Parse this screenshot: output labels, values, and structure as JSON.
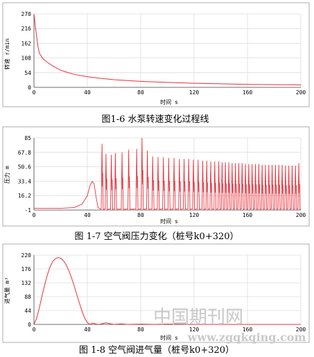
{
  "colors": {
    "series": "#e8303a",
    "grid": "#dcdcdc",
    "frame": "#9a9a9a",
    "watermark": "#c9c9c9"
  },
  "watermark": {
    "cn": "中国期刊网",
    "url": "www.zgqkqing.com"
  },
  "chart_data": [
    {
      "type": "line",
      "title": "",
      "caption": "图1-6 水泵转速变化过程线",
      "xlabel": "时间 s",
      "ylabel": "转速 r/min",
      "xlim": [
        0,
        200
      ],
      "ylim": [
        0,
        270
      ],
      "xticks": [
        "0",
        "40",
        "80",
        "120",
        "160",
        "200"
      ],
      "yticks": [
        "0",
        "54",
        "108",
        "162",
        "216",
        "270"
      ],
      "grid": true,
      "series": [
        {
          "x": [
            0,
            0.5,
            1,
            2,
            3,
            4,
            6,
            8,
            10,
            15,
            20,
            25,
            30,
            40,
            50,
            60,
            80,
            100,
            120,
            140,
            160,
            180,
            200
          ],
          "values": [
            270,
            248,
            225,
            185,
            150,
            126,
            110,
            100,
            92,
            76,
            63,
            55,
            48,
            39,
            33,
            28,
            22,
            18,
            15,
            13,
            11,
            10,
            9
          ]
        }
      ]
    },
    {
      "type": "line",
      "title": "",
      "caption": "图 1-7 空气阀压力变化（桩号k0+320）",
      "xlabel": "时间 s",
      "ylabel": "压力 m",
      "xlim": [
        0,
        200
      ],
      "ylim": [
        -1,
        85
      ],
      "xticks": [
        "0",
        "40",
        "80",
        "120",
        "160",
        "200"
      ],
      "yticks": [
        "-1",
        "16.2",
        "33.4",
        "50.6",
        "67.8",
        "85"
      ],
      "grid": true,
      "series": [
        {
          "baseline": [
            [
              0,
              1
            ],
            [
              20,
              1
            ],
            [
              30,
              2
            ],
            [
              36,
              6
            ],
            [
              40,
              16
            ],
            [
              42,
              28
            ],
            [
              43.5,
              33
            ],
            [
              45,
              31
            ],
            [
              46.5,
              15
            ],
            [
              48,
              2
            ],
            [
              50,
              0
            ]
          ],
          "spikes": [
            [
              51.0,
              78
            ],
            [
              54.0,
              66
            ],
            [
              58.0,
              65
            ],
            [
              61.0,
              67
            ],
            [
              66.0,
              68
            ],
            [
              71.0,
              71
            ],
            [
              77.0,
              72
            ],
            [
              81.0,
              85
            ],
            [
              85.0,
              70
            ],
            [
              89.0,
              63
            ],
            [
              93.0,
              62
            ],
            [
              97.0,
              62
            ],
            [
              101.0,
              61
            ],
            [
              105.0,
              61
            ],
            [
              109.0,
              60
            ],
            [
              112.5,
              60
            ],
            [
              116.0,
              60
            ],
            [
              119.5,
              59
            ],
            [
              123.0,
              59
            ],
            [
              126.5,
              58
            ],
            [
              129.5,
              58
            ],
            [
              132.5,
              57
            ],
            [
              135.5,
              57
            ],
            [
              138.5,
              57
            ],
            [
              141.0,
              56
            ],
            [
              143.5,
              56
            ],
            [
              146.0,
              56
            ],
            [
              148.5,
              55
            ],
            [
              151.0,
              55
            ],
            [
              153.5,
              55
            ],
            [
              156.0,
              55
            ],
            [
              158.5,
              54
            ],
            [
              161.0,
              54
            ],
            [
              163.5,
              54
            ],
            [
              166.0,
              54
            ],
            [
              168.5,
              54
            ],
            [
              171.0,
              53
            ],
            [
              173.5,
              53
            ],
            [
              176.0,
              53
            ],
            [
              178.5,
              53
            ],
            [
              181.0,
              53
            ],
            [
              183.5,
              53
            ],
            [
              186.0,
              53
            ],
            [
              188.5,
              52
            ],
            [
              191.0,
              52
            ],
            [
              193.5,
              52
            ],
            [
              196.0,
              52
            ],
            [
              198.5,
              55
            ]
          ]
        }
      ]
    },
    {
      "type": "line",
      "title": "",
      "caption": "图 1-8 空气阀进气量（桩号k0+320）",
      "xlabel": "时间 s",
      "ylabel": "进气量 m³",
      "xlim": [
        0,
        200
      ],
      "ylim": [
        0,
        220
      ],
      "xticks": [
        "0",
        "40",
        "80",
        "120",
        "160",
        "200"
      ],
      "yticks": [
        "0",
        "44",
        "88",
        "132",
        "176",
        "220"
      ],
      "grid": true,
      "series": [
        {
          "x": [
            0,
            2,
            4,
            6,
            8,
            10,
            12,
            14,
            16,
            18,
            20,
            22,
            24,
            26,
            28,
            30,
            32,
            34,
            36,
            38,
            40,
            42,
            43,
            44,
            46,
            48,
            50,
            52,
            54,
            56,
            60,
            65,
            70,
            80,
            90,
            100,
            120,
            140,
            160,
            200
          ],
          "values": [
            0,
            20,
            52,
            90,
            125,
            157,
            182,
            199,
            209,
            212,
            210,
            203,
            190,
            172,
            150,
            124,
            96,
            68,
            42,
            20,
            6,
            0,
            2,
            4,
            2,
            0,
            1,
            3,
            5,
            3,
            0,
            2,
            0,
            1,
            0,
            1,
            0,
            0,
            0,
            0
          ]
        }
      ]
    }
  ]
}
